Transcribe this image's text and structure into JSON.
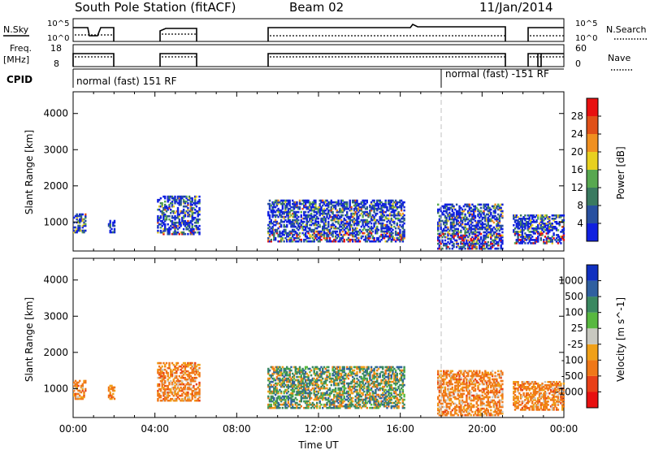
{
  "header": {
    "station": "South Pole Station (fitACF)",
    "beam": "Beam 02",
    "date": "11/Jan/2014"
  },
  "strip_labels": {
    "nsky": "N.Sky",
    "nsky_ticks": [
      "10^5",
      "10^0"
    ],
    "nsearch": "N.Search",
    "nsearch_ticks": [
      "10^5",
      "10^0"
    ],
    "freq": "Freq.",
    "freq_unit": "[MHz]",
    "freq_ticks": [
      "18",
      "8"
    ],
    "nave": "Nave",
    "nave_ticks": [
      "60",
      "0"
    ],
    "cpid": "CPID",
    "cpid_1": "normal (fast) 151 RF",
    "cpid_2": "normal (fast) -151 RF"
  },
  "chart_data": [
    {
      "type": "heatmap",
      "title": "",
      "xlabel": "",
      "ylabel": "Slant Range [km]",
      "xlim": [
        0,
        24
      ],
      "ylim": [
        200,
        4600
      ],
      "yticks": [
        1000,
        2000,
        3000,
        4000
      ],
      "colorbar": {
        "label": "Power [dB]",
        "ticks": [
          "4",
          "8",
          "12",
          "16",
          "20",
          "24",
          "28"
        ],
        "colors": [
          "#1020e0",
          "#2850a0",
          "#3a7a60",
          "#58a850",
          "#e8d020",
          "#f09020",
          "#e05018",
          "#e81010"
        ]
      },
      "echo_regions_hours": [
        {
          "t0": 0.0,
          "t1": 0.6,
          "r0": 700,
          "r1": 1200
        },
        {
          "t0": 1.7,
          "t1": 2.0,
          "r0": 700,
          "r1": 1100
        },
        {
          "t0": 4.1,
          "t1": 6.2,
          "r0": 650,
          "r1": 1700
        },
        {
          "t0": 9.5,
          "t1": 16.2,
          "r0": 450,
          "r1": 1600
        },
        {
          "t0": 17.8,
          "t1": 21.0,
          "r0": 250,
          "r1": 1500
        },
        {
          "t0": 21.5,
          "t1": 24.0,
          "r0": 400,
          "r1": 1200
        }
      ]
    },
    {
      "type": "heatmap",
      "title": "",
      "xlabel": "Time UT",
      "ylabel": "Slant Range [km]",
      "xlim": [
        0,
        24
      ],
      "ylim": [
        200,
        4600
      ],
      "xticks": [
        "00:00",
        "04:00",
        "08:00",
        "12:00",
        "16:00",
        "20:00",
        "00:00"
      ],
      "yticks": [
        1000,
        2000,
        3000,
        4000
      ],
      "colorbar": {
        "label": "Velocity [m s^-1]",
        "ticks": [
          "1000",
          "500",
          "100",
          "25",
          "-25",
          "-100",
          "-500",
          "-1000"
        ],
        "colors": [
          "#1030c0",
          "#3060a0",
          "#3a8860",
          "#58b840",
          "#c8c8c0",
          "#f0a018",
          "#f07818",
          "#e84018",
          "#e81010"
        ]
      },
      "echo_regions_hours": [
        {
          "t0": 0.0,
          "t1": 0.6,
          "r0": 700,
          "r1": 1200
        },
        {
          "t0": 1.7,
          "t1": 2.0,
          "r0": 700,
          "r1": 1100
        },
        {
          "t0": 4.1,
          "t1": 6.2,
          "r0": 650,
          "r1": 1700
        },
        {
          "t0": 9.5,
          "t1": 16.2,
          "r0": 450,
          "r1": 1600
        },
        {
          "t0": 17.8,
          "t1": 21.0,
          "r0": 250,
          "r1": 1500
        },
        {
          "t0": 21.5,
          "t1": 24.0,
          "r0": 400,
          "r1": 1200
        }
      ]
    }
  ]
}
